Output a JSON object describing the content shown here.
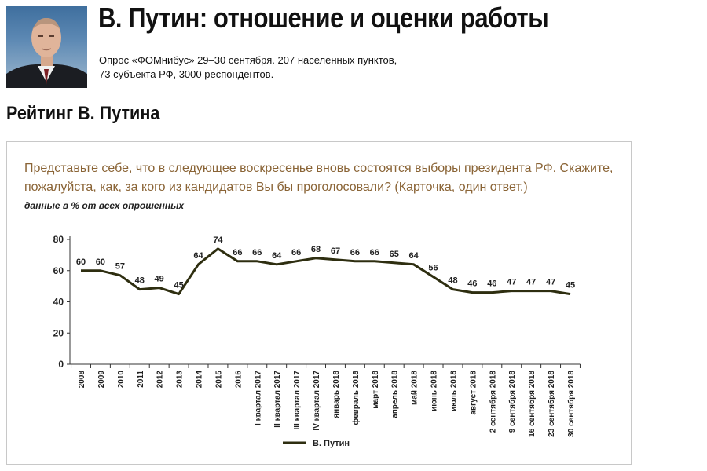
{
  "header": {
    "title": "В. Путин: отношение и оценки работы",
    "survey_line1": "Опрос «ФОМнибус» 29–30 сентября. 207 населенных пунктов,",
    "survey_line2": "73 субъекта РФ, 3000 респондентов."
  },
  "section": {
    "title": "Рейтинг В. Путина"
  },
  "colors": {
    "line": "#2e2e10",
    "question": "#8a6436"
  },
  "chart_data": {
    "type": "line",
    "question": "Представьте себе, что в следующее воскресенье вновь состоятся выборы президента РФ. Скажите, пожалуйста, как, за кого из кандидатов Вы бы проголосовали? (Карточка, один ответ.)",
    "units_note": "данные в % от всех опрошенных",
    "categories": [
      "2008",
      "2009",
      "2010",
      "2011",
      "2012",
      "2013",
      "2014",
      "2015",
      "2016",
      "I квартал 2017",
      "II квартал 2017",
      "III квартал 2017",
      "IV квартал 2017",
      "январь 2018",
      "февраль 2018",
      "март 2018",
      "апрель 2018",
      "май 2018",
      "июнь 2018",
      "июль 2018",
      "август 2018",
      "2 сентября 2018",
      "9 сентября 2018",
      "16 сентября 2018",
      "23 сентября 2018",
      "30 сентября 2018"
    ],
    "series": [
      {
        "name": "В. Путин",
        "values": [
          60,
          60,
          57,
          48,
          49,
          45,
          64,
          74,
          66,
          66,
          64,
          66,
          68,
          67,
          66,
          66,
          65,
          64,
          56,
          48,
          46,
          46,
          47,
          47,
          47,
          45
        ]
      }
    ],
    "yticks": [
      0,
      20,
      40,
      60,
      80
    ],
    "ylim": [
      0,
      80
    ],
    "legend_position": "bottom-center",
    "grid": false
  }
}
